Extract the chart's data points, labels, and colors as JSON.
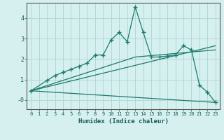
{
  "xlabel": "Humidex (Indice chaleur)",
  "background_color": "#d6f0f0",
  "grid_color": "#b0d8d8",
  "line_color": "#1a7a6a",
  "xlim": [
    -0.5,
    23.5
  ],
  "ylim": [
    -0.45,
    4.75
  ],
  "xticks": [
    0,
    1,
    2,
    3,
    4,
    5,
    6,
    7,
    8,
    9,
    10,
    11,
    12,
    13,
    14,
    15,
    16,
    17,
    18,
    19,
    20,
    21,
    22,
    23
  ],
  "yticks": [
    0,
    1,
    2,
    3,
    4
  ],
  "ytick_labels": [
    "-0",
    "1",
    "2",
    "3",
    "4"
  ],
  "main_series": {
    "x": [
      0,
      2,
      3,
      4,
      5,
      6,
      7,
      8,
      9,
      10,
      11,
      12,
      13,
      14,
      15,
      16,
      17,
      18,
      19,
      20,
      21,
      22,
      23
    ],
    "y": [
      0.45,
      0.95,
      1.2,
      1.35,
      1.5,
      1.65,
      1.8,
      2.2,
      2.2,
      2.95,
      3.3,
      2.85,
      4.55,
      3.3,
      2.1,
      2.1,
      2.15,
      2.2,
      2.65,
      2.45,
      0.72,
      0.38,
      -0.12
    ]
  },
  "trend_lines": [
    {
      "x": [
        0,
        23
      ],
      "y": [
        0.45,
        2.65
      ]
    },
    {
      "x": [
        0,
        23
      ],
      "y": [
        0.45,
        -0.12
      ]
    },
    {
      "x": [
        0,
        13,
        23
      ],
      "y": [
        0.45,
        2.1,
        2.45
      ]
    }
  ]
}
